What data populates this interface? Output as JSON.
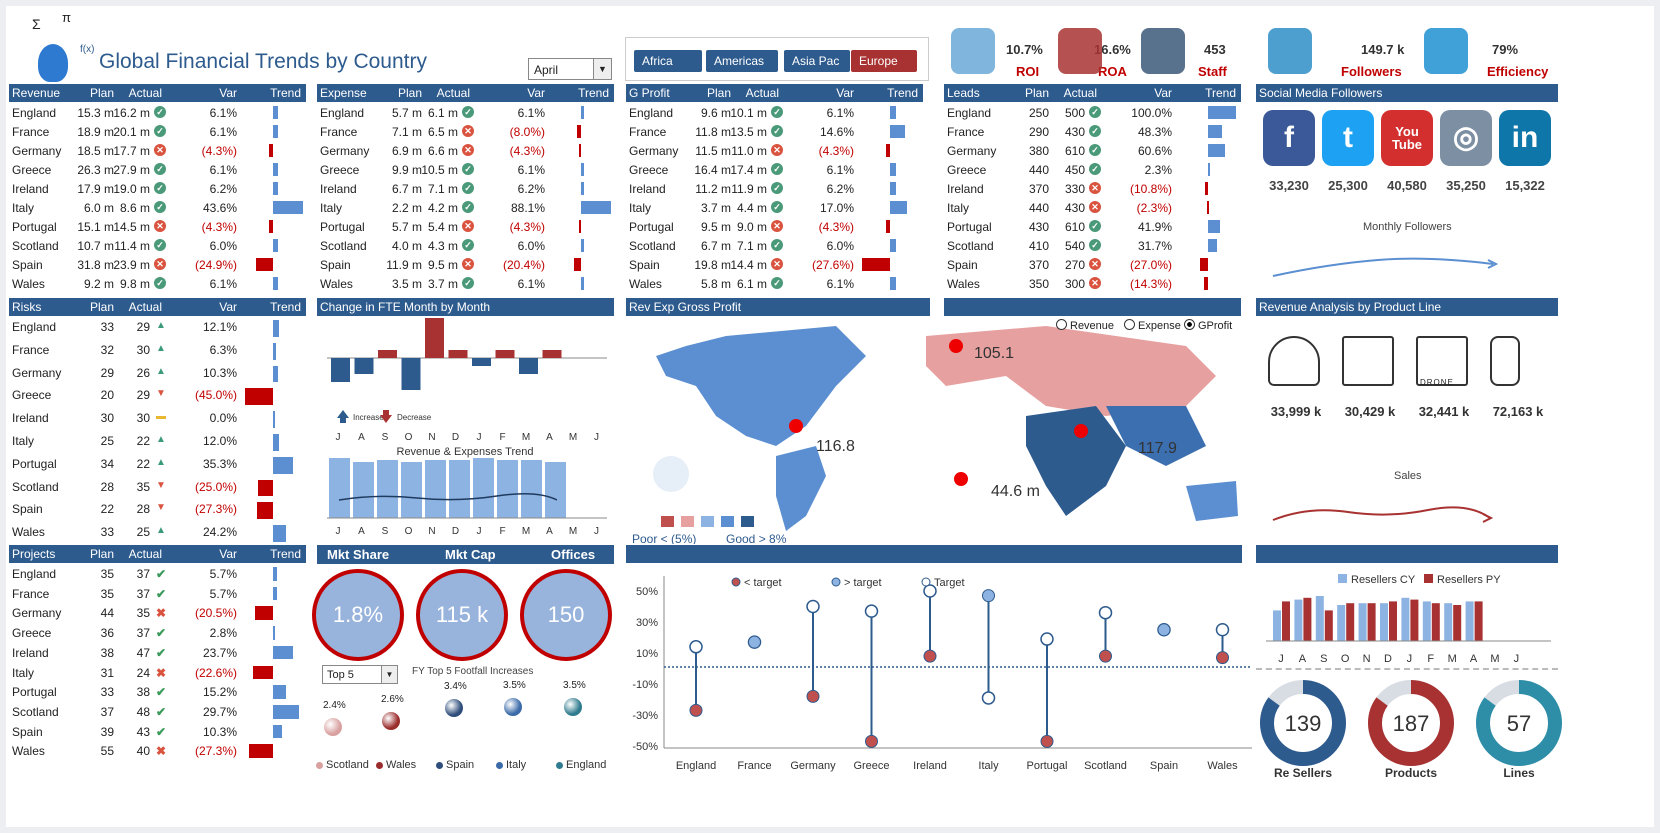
{
  "title": "Global Financial Trends by Country",
  "month": "April",
  "regions": [
    "Africa",
    "Americas",
    "Asia Pac",
    "Europe"
  ],
  "kpis": [
    {
      "value": "10.7%",
      "label": "ROI"
    },
    {
      "value": "16.6%",
      "label": "ROA"
    },
    {
      "value": "453",
      "label": "Staff"
    },
    {
      "value": "149.7 k",
      "label": "Followers"
    },
    {
      "value": "79%",
      "label": "Efficiency"
    }
  ],
  "tables": [
    {
      "title": "Revenue",
      "cols": [
        "Plan",
        "Actual",
        "Var",
        "Trend"
      ],
      "rows": [
        [
          "England",
          "15.3 m",
          "16.2 m",
          "ok",
          "6.1%",
          5
        ],
        [
          "France",
          "18.9 m",
          "20.1 m",
          "ok",
          "6.1%",
          5
        ],
        [
          "Germany",
          "18.5 m",
          "17.7 m",
          "bad",
          "(4.3%)",
          -4
        ],
        [
          "Greece",
          "26.3 m",
          "27.9 m",
          "ok",
          "6.1%",
          5
        ],
        [
          "Ireland",
          "17.9 m",
          "19.0 m",
          "ok",
          "6.2%",
          5
        ],
        [
          "Italy",
          "6.0 m",
          "8.6 m",
          "ok",
          "43.6%",
          30
        ],
        [
          "Portugal",
          "15.1 m",
          "14.5 m",
          "bad",
          "(4.3%)",
          -4
        ],
        [
          "Scotland",
          "10.7 m",
          "11.4 m",
          "ok",
          "6.0%",
          5
        ],
        [
          "Spain",
          "31.8 m",
          "23.9 m",
          "bad",
          "(24.9%)",
          -17
        ],
        [
          "Wales",
          "9.2 m",
          "9.8 m",
          "ok",
          "6.1%",
          5
        ]
      ]
    },
    {
      "title": "Expense",
      "cols": [
        "Plan",
        "Actual",
        "Var",
        "Trend"
      ],
      "rows": [
        [
          "England",
          "5.7 m",
          "6.1 m",
          "ok",
          "6.1%",
          3
        ],
        [
          "France",
          "7.1 m",
          "6.5 m",
          "bad",
          "(8.0%)",
          -4
        ],
        [
          "Germany",
          "6.9 m",
          "6.6 m",
          "bad",
          "(4.3%)",
          -2
        ],
        [
          "Greece",
          "9.9 m",
          "10.5 m",
          "ok",
          "6.1%",
          3
        ],
        [
          "Ireland",
          "6.7 m",
          "7.1 m",
          "ok",
          "6.2%",
          3
        ],
        [
          "Italy",
          "2.2 m",
          "4.2 m",
          "ok",
          "88.1%",
          30
        ],
        [
          "Portugal",
          "5.7 m",
          "5.4 m",
          "bad",
          "(4.3%)",
          -2
        ],
        [
          "Scotland",
          "4.0 m",
          "4.3 m",
          "ok",
          "6.0%",
          3
        ],
        [
          "Spain",
          "11.9 m",
          "9.5 m",
          "bad",
          "(20.4%)",
          -7
        ],
        [
          "Wales",
          "3.5 m",
          "3.7 m",
          "ok",
          "6.1%",
          3
        ]
      ]
    },
    {
      "title": "G Profit",
      "cols": [
        "Plan",
        "Actual",
        "Var",
        "Trend"
      ],
      "rows": [
        [
          "England",
          "9.6 m",
          "10.1 m",
          "ok",
          "6.1%",
          6
        ],
        [
          "France",
          "11.8 m",
          "13.5 m",
          "ok",
          "14.6%",
          15
        ],
        [
          "Germany",
          "11.5 m",
          "11.0 m",
          "bad",
          "(4.3%)",
          -4
        ],
        [
          "Greece",
          "16.4 m",
          "17.4 m",
          "ok",
          "6.1%",
          6
        ],
        [
          "Ireland",
          "11.2 m",
          "11.9 m",
          "ok",
          "6.2%",
          6
        ],
        [
          "Italy",
          "3.7 m",
          "4.4 m",
          "ok",
          "17.0%",
          17
        ],
        [
          "Portugal",
          "9.5 m",
          "9.0 m",
          "bad",
          "(4.3%)",
          -4
        ],
        [
          "Scotland",
          "6.7 m",
          "7.1 m",
          "ok",
          "6.0%",
          6
        ],
        [
          "Spain",
          "19.8 m",
          "14.4 m",
          "bad",
          "(27.6%)",
          -28
        ],
        [
          "Wales",
          "5.8 m",
          "6.1 m",
          "ok",
          "6.1%",
          6
        ]
      ]
    },
    {
      "title": "Leads",
      "cols": [
        "Plan",
        "Actual",
        "Var",
        "Trend"
      ],
      "rows": [
        [
          "England",
          "250",
          "500",
          "ok",
          "100.0%",
          28
        ],
        [
          "France",
          "290",
          "430",
          "ok",
          "48.3%",
          14
        ],
        [
          "Germany",
          "380",
          "610",
          "ok",
          "60.6%",
          17
        ],
        [
          "Greece",
          "440",
          "450",
          "ok",
          "2.3%",
          1
        ],
        [
          "Ireland",
          "370",
          "330",
          "bad",
          "(10.8%)",
          -3
        ],
        [
          "Italy",
          "440",
          "430",
          "bad",
          "(2.3%)",
          -1
        ],
        [
          "Portugal",
          "430",
          "610",
          "ok",
          "41.9%",
          12
        ],
        [
          "Scotland",
          "410",
          "540",
          "ok",
          "31.7%",
          9
        ],
        [
          "Spain",
          "370",
          "270",
          "bad",
          "(27.0%)",
          -8
        ],
        [
          "Wales",
          "350",
          "300",
          "bad",
          "(14.3%)",
          -4
        ]
      ]
    }
  ],
  "risks": {
    "title": "Risks",
    "cols": [
      "Plan",
      "Actual",
      "Var",
      "Trend"
    ],
    "rows": [
      [
        "England",
        "33",
        "29",
        "up",
        "12.1%",
        6
      ],
      [
        "France",
        "32",
        "30",
        "up",
        "6.3%",
        3
      ],
      [
        "Germany",
        "29",
        "26",
        "up",
        "10.3%",
        5
      ],
      [
        "Greece",
        "20",
        "29",
        "down",
        "(45.0%)",
        -28
      ],
      [
        "Ireland",
        "30",
        "30",
        "flat",
        "0.0%",
        0
      ],
      [
        "Italy",
        "25",
        "22",
        "up",
        "12.0%",
        6
      ],
      [
        "Portugal",
        "34",
        "22",
        "up",
        "35.3%",
        20
      ],
      [
        "Scotland",
        "28",
        "35",
        "down",
        "(25.0%)",
        -15
      ],
      [
        "Spain",
        "22",
        "28",
        "down",
        "(27.3%)",
        -16
      ],
      [
        "Wales",
        "33",
        "25",
        "up",
        "24.2%",
        13
      ]
    ]
  },
  "projects": {
    "title": "Projects",
    "cols": [
      "Plan",
      "Actual",
      "Var",
      "Trend"
    ],
    "rows": [
      [
        "England",
        "35",
        "37",
        "ok",
        "5.7%",
        4
      ],
      [
        "France",
        "35",
        "37",
        "ok",
        "5.7%",
        4
      ],
      [
        "Germany",
        "44",
        "35",
        "bad",
        "(20.5%)",
        -18
      ],
      [
        "Greece",
        "36",
        "37",
        "ok",
        "2.8%",
        2
      ],
      [
        "Ireland",
        "38",
        "47",
        "ok",
        "23.7%",
        20
      ],
      [
        "Italy",
        "31",
        "24",
        "bad",
        "(22.6%)",
        -20
      ],
      [
        "Portugal",
        "33",
        "38",
        "ok",
        "15.2%",
        13
      ],
      [
        "Scotland",
        "37",
        "48",
        "ok",
        "29.7%",
        26
      ],
      [
        "Spain",
        "39",
        "43",
        "ok",
        "10.3%",
        9
      ],
      [
        "Wales",
        "55",
        "40",
        "bad",
        "(27.3%)",
        -24
      ]
    ]
  },
  "fte": {
    "title": "Change in FTE Month by Month",
    "months": [
      "J",
      "A",
      "S",
      "O",
      "N",
      "D",
      "J",
      "F",
      "M",
      "A",
      "M",
      "J"
    ],
    "values": [
      -3,
      -2,
      1,
      -4,
      6,
      1,
      -1,
      1,
      -2,
      1,
      0,
      0
    ],
    "increase": "Increase",
    "decrease": "Decrease",
    "trend_title": "Revenue & Expenses Trend",
    "trend_values": [
      60,
      56,
      58,
      56,
      58,
      58,
      60,
      58,
      58,
      56,
      0,
      0
    ]
  },
  "map": {
    "title": "Rev Exp Gross Profit",
    "options": [
      "Revenue",
      "Expense",
      "GProfit"
    ],
    "selected": "GProfit",
    "labels": [
      "105.1",
      "116.8",
      "117.9",
      "44.6 m"
    ],
    "legend_poor": "Poor < (5%)",
    "legend_good": "Good > 8%",
    "legend_colors": [
      "#c0504d",
      "#e6a0a0",
      "#8db3e2",
      "#5b8fd1",
      "#2e5b8e"
    ]
  },
  "social": {
    "title": "Social Media Followers",
    "items": [
      {
        "name": "facebook",
        "value": "33,230",
        "color": "#3b5998",
        "glyph": "f"
      },
      {
        "name": "twitter",
        "value": "25,300",
        "color": "#1da1f2",
        "glyph": "t"
      },
      {
        "name": "youtube",
        "value": "40,580",
        "color": "#d32f2f",
        "glyph": "You Tube"
      },
      {
        "name": "instagram",
        "value": "35,250",
        "color": "#7d8fa3",
        "glyph": "◎"
      },
      {
        "name": "linkedin",
        "value": "15,322",
        "color": "#0e76a8",
        "glyph": "in"
      }
    ],
    "monthly_label": "Monthly Followers"
  },
  "products": {
    "title": "Revenue Analysis by Product Line",
    "items": [
      {
        "name": "headphones",
        "value": "33,999 k"
      },
      {
        "name": "laptop",
        "value": "30,429 k"
      },
      {
        "name": "drone",
        "value": "32,441 k"
      },
      {
        "name": "phone",
        "value": "72,163 k"
      }
    ],
    "sales_label": "Sales",
    "drone_text": "DRONE"
  },
  "mkt": {
    "labels": [
      "Mkt Share",
      "Mkt Cap",
      "Offices"
    ],
    "values": [
      "1.8%",
      "115 k",
      "150"
    ]
  },
  "footfall": {
    "select": "Top 5",
    "title": "FY Top 5 Footfall Increases",
    "values": [
      "2.4%",
      "2.6%",
      "3.4%",
      "3.5%",
      "3.5%"
    ],
    "names": [
      "Scotland",
      "Wales",
      "Spain",
      "Italy",
      "England"
    ],
    "colors": [
      "#d9a0a0",
      "#9b2c2c",
      "#2e4d7a",
      "#3a6aa8",
      "#2e7a8e"
    ]
  },
  "chart_data": [
    {
      "type": "scatter",
      "title": "",
      "legend": [
        "< target",
        "> target",
        "Target"
      ],
      "categories": [
        "England",
        "France",
        "Germany",
        "Greece",
        "Ireland",
        "Italy",
        "Portugal",
        "Scotland",
        "Spain",
        "Wales"
      ],
      "yticks": [
        "50%",
        "30%",
        "10%",
        "-10%",
        "-30%",
        "-50%"
      ],
      "ylim": [
        -50,
        50
      ],
      "actual": [
        -27,
        17,
        -18,
        -47,
        8,
        47,
        -47,
        8,
        25,
        7
      ],
      "target": [
        14,
        17,
        40,
        37,
        50,
        -19,
        19,
        36,
        25,
        25
      ],
      "target_line": 1
    },
    {
      "type": "bar",
      "title": "",
      "series": [
        {
          "name": "Resellers CY",
          "values": [
            17,
            23,
            25,
            20,
            21,
            21,
            24,
            22,
            21,
            22,
            22,
            21
          ]
        },
        {
          "name": "Resellers PY",
          "values": [
            22,
            24,
            17,
            21,
            21,
            22,
            23,
            21,
            20,
            22,
            21,
            20
          ]
        }
      ],
      "categories": [
        "J",
        "A",
        "S",
        "O",
        "N",
        "D",
        "J",
        "F",
        "M",
        "A",
        "M",
        "J"
      ]
    }
  ],
  "donuts": [
    {
      "value": "139",
      "label": "Re Sellers",
      "color": "#2e5b8e",
      "pct": 0.85
    },
    {
      "value": "187",
      "label": "Products",
      "color": "#a83232",
      "pct": 0.85
    },
    {
      "value": "57",
      "label": "Lines",
      "color": "#2e8ea8",
      "pct": 0.85
    }
  ]
}
